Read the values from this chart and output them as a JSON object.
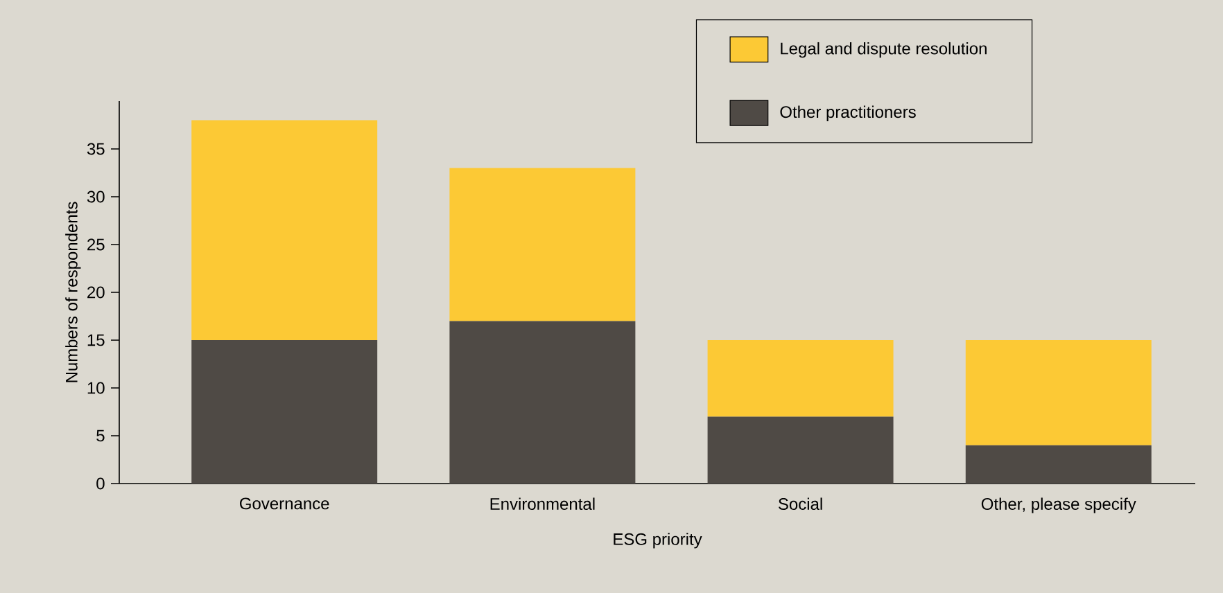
{
  "chart_data": {
    "type": "bar",
    "stacked": true,
    "xlabel": "ESG priority",
    "ylabel": "Numbers of respondents",
    "categories": [
      "Governance",
      "Environmental",
      "Social",
      "Other, please specify"
    ],
    "series": [
      {
        "name": "Other practitioners",
        "color": "#4f4a45",
        "values": [
          15,
          17,
          7,
          4
        ]
      },
      {
        "name": "Legal and dispute resolution",
        "color": "#fcc935",
        "values": [
          23,
          16,
          8,
          11
        ]
      }
    ],
    "ylim": [
      0,
      40
    ],
    "yticks": [
      0,
      5,
      10,
      15,
      20,
      25,
      30,
      35
    ],
    "grid": false,
    "legend": "top right"
  }
}
